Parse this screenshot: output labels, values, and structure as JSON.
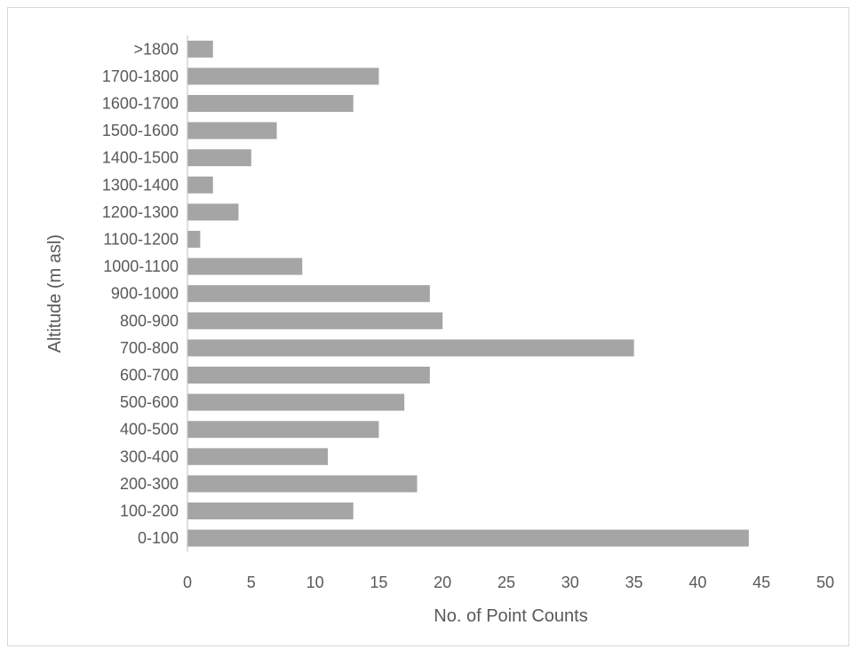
{
  "chart_data": {
    "type": "bar",
    "orientation": "horizontal",
    "title": "",
    "xlabel": "No. of Point Counts",
    "ylabel": "Altitude (m asl)",
    "xlim": [
      0,
      50
    ],
    "x_ticks": [
      0,
      5,
      10,
      15,
      20,
      25,
      30,
      35,
      40,
      45,
      50
    ],
    "grid": false,
    "legend": "none",
    "bar_color": "#a5a5a5",
    "axis_color": "#bfbfbf",
    "text_color": "#595959",
    "categories": [
      "0-100",
      "100-200",
      "200-300",
      "300-400",
      "400-500",
      "500-600",
      "600-700",
      "700-800",
      "800-900",
      "900-1000",
      "1000-1100",
      "1100-1200",
      "1200-1300",
      "1300-1400",
      "1400-1500",
      "1500-1600",
      "1600-1700",
      "1700-1800",
      ">1800"
    ],
    "values": [
      44,
      13,
      18,
      11,
      15,
      17,
      19,
      35,
      20,
      19,
      9,
      1,
      4,
      2,
      5,
      7,
      13,
      15,
      2
    ]
  }
}
